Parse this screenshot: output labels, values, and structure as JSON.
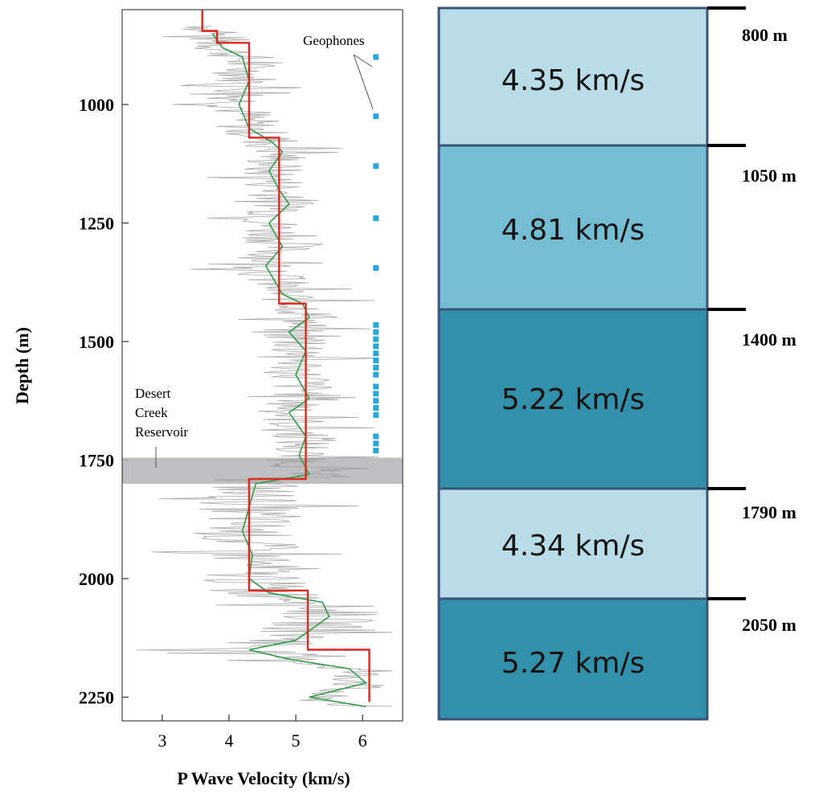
{
  "chart_data": [
    {
      "type": "line",
      "xlabel": "P Wave Velocity (km/s)",
      "ylabel": "Depth (m)",
      "xlim": [
        2.4,
        6.6
      ],
      "ylim": [
        2300,
        800
      ],
      "y_reversed": true,
      "x_ticks": [
        3,
        4,
        5,
        6
      ],
      "y_ticks": [
        1000,
        1250,
        1500,
        1750,
        2000,
        2250
      ],
      "grid": false,
      "colors": {
        "raw": "#9a9a9a",
        "smoothed": "#2e9e44",
        "blocked": "#e0261f",
        "geophone": "#2aa6dc",
        "reservoir": "#b8b8bc"
      },
      "series": [
        {
          "style": "blocked step model",
          "points": [
            [
              3.6,
              800
            ],
            [
              3.6,
              845
            ],
            [
              3.82,
              845
            ],
            [
              3.82,
              870
            ],
            [
              4.3,
              870
            ],
            [
              4.3,
              1070
            ],
            [
              4.75,
              1070
            ],
            [
              4.75,
              1420
            ],
            [
              5.15,
              1420
            ],
            [
              5.15,
              1790
            ],
            [
              4.3,
              1790
            ],
            [
              4.3,
              2025
            ],
            [
              5.18,
              2025
            ],
            [
              5.18,
              2150
            ],
            [
              6.1,
              2150
            ],
            [
              6.1,
              2260
            ]
          ]
        },
        {
          "style": "smoothed log",
          "points": [
            [
              3.75,
              850
            ],
            [
              3.9,
              880
            ],
            [
              4.2,
              900
            ],
            [
              4.3,
              950
            ],
            [
              4.15,
              1000
            ],
            [
              4.3,
              1050
            ],
            [
              4.65,
              1080
            ],
            [
              4.8,
              1100
            ],
            [
              4.6,
              1140
            ],
            [
              4.75,
              1180
            ],
            [
              4.9,
              1210
            ],
            [
              4.6,
              1250
            ],
            [
              4.8,
              1300
            ],
            [
              4.55,
              1340
            ],
            [
              4.8,
              1400
            ],
            [
              5.1,
              1420
            ],
            [
              5.2,
              1450
            ],
            [
              4.9,
              1480
            ],
            [
              5.15,
              1520
            ],
            [
              5.0,
              1570
            ],
            [
              5.2,
              1620
            ],
            [
              4.9,
              1650
            ],
            [
              5.15,
              1700
            ],
            [
              5.05,
              1740
            ],
            [
              5.2,
              1780
            ],
            [
              4.4,
              1800
            ],
            [
              4.3,
              1850
            ],
            [
              4.2,
              1900
            ],
            [
              4.35,
              1950
            ],
            [
              4.3,
              2000
            ],
            [
              4.6,
              2030
            ],
            [
              5.4,
              2050
            ],
            [
              5.5,
              2080
            ],
            [
              5.3,
              2100
            ],
            [
              5.0,
              2130
            ],
            [
              4.3,
              2150
            ],
            [
              4.9,
              2170
            ],
            [
              5.8,
              2190
            ],
            [
              6.05,
              2220
            ],
            [
              5.2,
              2250
            ],
            [
              6.05,
              2270
            ]
          ]
        },
        {
          "style": "raw log",
          "points": []
        }
      ],
      "geophones": {
        "label": "Geophones",
        "x": 6.2,
        "depths": [
          900,
          1025,
          1130,
          1240,
          1345,
          1465,
          1480,
          1495,
          1510,
          1525,
          1540,
          1555,
          1570,
          1595,
          1610,
          1625,
          1640,
          1655,
          1700,
          1715,
          1730
        ]
      },
      "reservoir": {
        "label_lines": [
          "Desert",
          "Creek",
          "Reservoir"
        ],
        "depth_range": [
          1745,
          1800
        ]
      }
    },
    {
      "type": "table",
      "layers": [
        {
          "velocity": "4.35 km/s",
          "boundary_label": "800 m",
          "color": "#b9dde8"
        },
        {
          "velocity": "4.81 km/s",
          "boundary_label": "1050 m",
          "color": "#74bdd3"
        },
        {
          "velocity": "5.22 km/s",
          "boundary_label": "1400 m",
          "color": "#3290aa"
        },
        {
          "velocity": "4.34 km/s",
          "boundary_label": "1790 m",
          "color": "#b9dde8"
        },
        {
          "velocity": "5.27 km/s",
          "boundary_label": "2050 m",
          "color": "#3290aa"
        }
      ],
      "border_color": "#3a557a"
    }
  ]
}
